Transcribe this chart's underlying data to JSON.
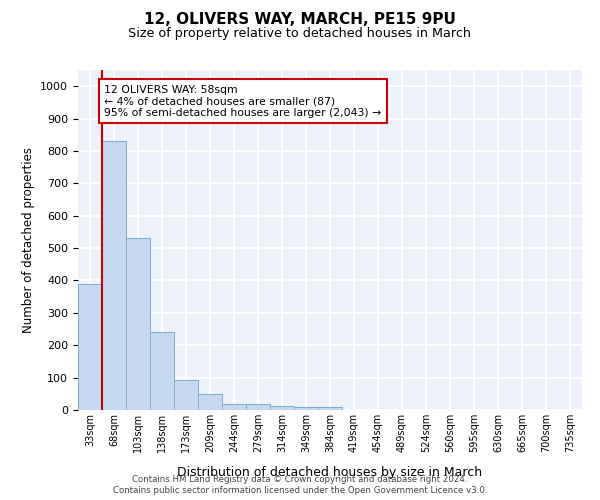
{
  "title_line1": "12, OLIVERS WAY, MARCH, PE15 9PU",
  "title_line2": "Size of property relative to detached houses in March",
  "xlabel": "Distribution of detached houses by size in March",
  "ylabel": "Number of detached properties",
  "categories": [
    "33sqm",
    "68sqm",
    "103sqm",
    "138sqm",
    "173sqm",
    "209sqm",
    "244sqm",
    "279sqm",
    "314sqm",
    "349sqm",
    "384sqm",
    "419sqm",
    "454sqm",
    "489sqm",
    "524sqm",
    "560sqm",
    "595sqm",
    "630sqm",
    "665sqm",
    "700sqm",
    "735sqm"
  ],
  "values": [
    390,
    830,
    530,
    240,
    93,
    50,
    20,
    18,
    13,
    10,
    8,
    0,
    0,
    0,
    0,
    0,
    0,
    0,
    0,
    0,
    0
  ],
  "bar_color": "#c5d8f0",
  "bar_edge_color": "#7baed4",
  "annotation_text": "12 OLIVERS WAY: 58sqm\n← 4% of detached houses are smaller (87)\n95% of semi-detached houses are larger (2,043) →",
  "vline_color": "#cc0000",
  "vline_x": 0.5,
  "ylim": [
    0,
    1050
  ],
  "yticks": [
    0,
    100,
    200,
    300,
    400,
    500,
    600,
    700,
    800,
    900,
    1000
  ],
  "background_color": "#edf2fa",
  "grid_color": "#ffffff",
  "footer_line1": "Contains HM Land Registry data © Crown copyright and database right 2024.",
  "footer_line2": "Contains public sector information licensed under the Open Government Licence v3.0."
}
